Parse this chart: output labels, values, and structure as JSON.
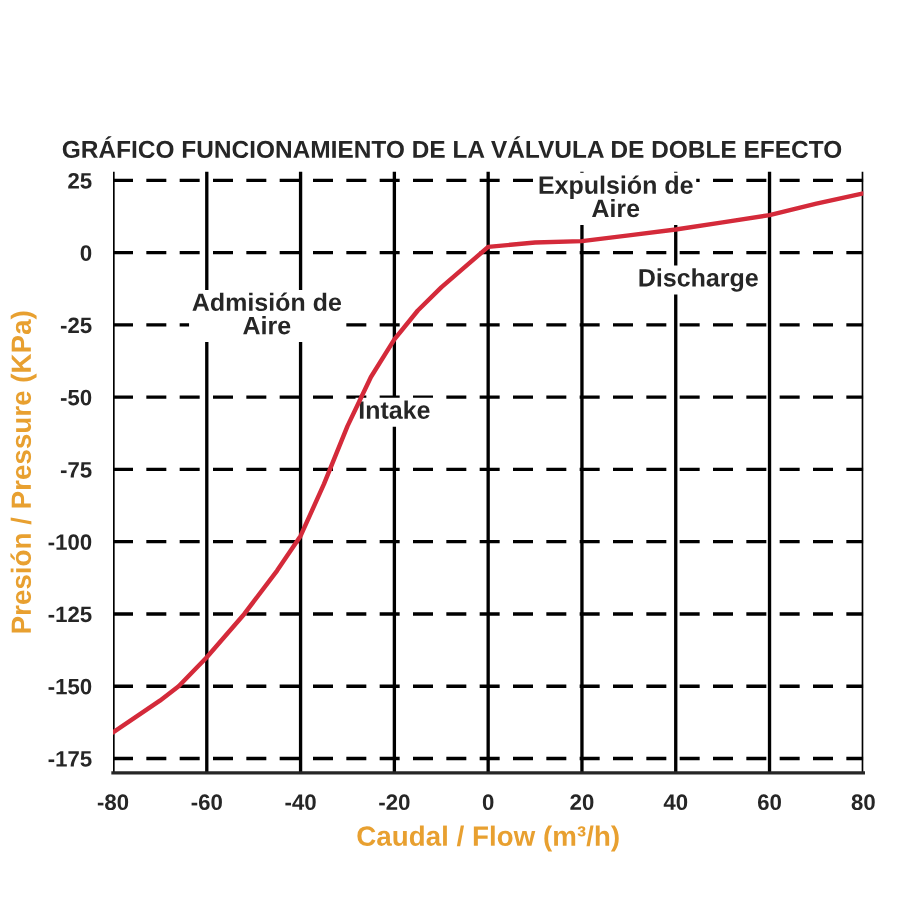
{
  "chart_data": {
    "type": "line",
    "title": "GRÁFICO FUNCIONAMIENTO DE LA VÁLVULA DE DOBLE EFECTO",
    "xlabel": "Caudal / Flow (m³/h)",
    "ylabel": "Presión / Pressure (KPa)",
    "x": [
      -80,
      -70,
      -66,
      -60,
      -52,
      -45,
      -40,
      -35,
      -30,
      -25,
      -20,
      -15,
      -10,
      -5,
      0,
      10,
      20,
      30,
      40,
      50,
      60,
      70,
      80
    ],
    "series": [
      {
        "color": "#d42a3a",
        "values": [
          -166,
          -155,
          -150,
          -140,
          -125,
          -110,
          -98,
          -80,
          -60,
          -43,
          -30,
          -20,
          -12,
          -5,
          2,
          3.5,
          4,
          6,
          8,
          10.5,
          13,
          17,
          20.5
        ]
      }
    ],
    "xlim": [
      -80,
      80
    ],
    "xticks": [
      -80,
      -60,
      -40,
      -20,
      0,
      20,
      40,
      60,
      80
    ],
    "ylim": [
      -180,
      28
    ],
    "yticks": [
      25,
      0,
      -25,
      -50,
      -75,
      -100,
      -125,
      -150,
      -175
    ],
    "grid": true,
    "legend": false,
    "marker": "none",
    "line_style": "solid",
    "annotations": [
      "Admisión de\nAire",
      "Intake",
      "Expulsión de\nAire",
      "Discharge"
    ]
  }
}
